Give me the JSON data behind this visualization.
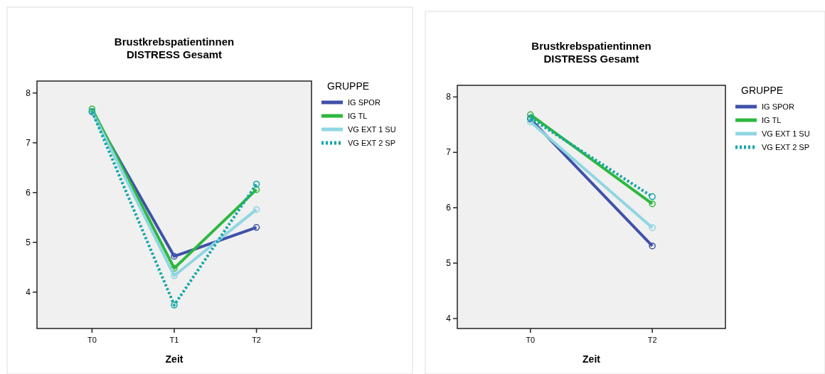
{
  "chart_data": [
    {
      "type": "line",
      "title": "Brustkrebspatientinnen\nDISTRESS Gesamt",
      "xlabel": "Zeit",
      "legend_title": "GRUPPE",
      "legend": "right",
      "marker": "circle",
      "grid": false,
      "categories": [
        "T0",
        "T1",
        "T2"
      ],
      "ylim": [
        3.27,
        8.24
      ],
      "yticks": [
        4,
        5,
        6,
        7,
        8
      ],
      "series": [
        {
          "name": "IG SPOR",
          "color": "#3f51a8",
          "values": [
            7.62,
            4.72,
            5.3
          ]
        },
        {
          "name": "IG TL",
          "color": "#2db83d",
          "values": [
            7.68,
            4.48,
            6.06
          ]
        },
        {
          "name": "VG EXT 1 SU",
          "color": "#8fd6e1",
          "values": [
            7.63,
            4.33,
            5.66
          ]
        },
        {
          "name": "VG EXT 2 SP",
          "color": "#11a6a6",
          "line_style": "dotted",
          "values": [
            7.63,
            3.74,
            6.17
          ]
        }
      ]
    },
    {
      "type": "line",
      "title": "Brustkrebspatientinnen\nDISTRESS Gesamt",
      "xlabel": "Zeit",
      "legend_title": "GRUPPE",
      "legend": "right",
      "marker": "circle",
      "grid": false,
      "categories": [
        "T0",
        "T2"
      ],
      "ylim": [
        3.82,
        8.21
      ],
      "yticks": [
        4,
        5,
        6,
        7,
        8
      ],
      "series": [
        {
          "name": "IG SPOR",
          "color": "#3f51a8",
          "values": [
            7.6,
            5.31
          ]
        },
        {
          "name": "IG TL",
          "color": "#2db83d",
          "values": [
            7.68,
            6.07
          ]
        },
        {
          "name": "VG EXT 1 SU",
          "color": "#8fd6e1",
          "values": [
            7.55,
            5.64
          ]
        },
        {
          "name": "VG EXT 2 SP",
          "color": "#11a6a6",
          "line_style": "dotted",
          "values": [
            7.62,
            6.2
          ]
        }
      ]
    }
  ]
}
